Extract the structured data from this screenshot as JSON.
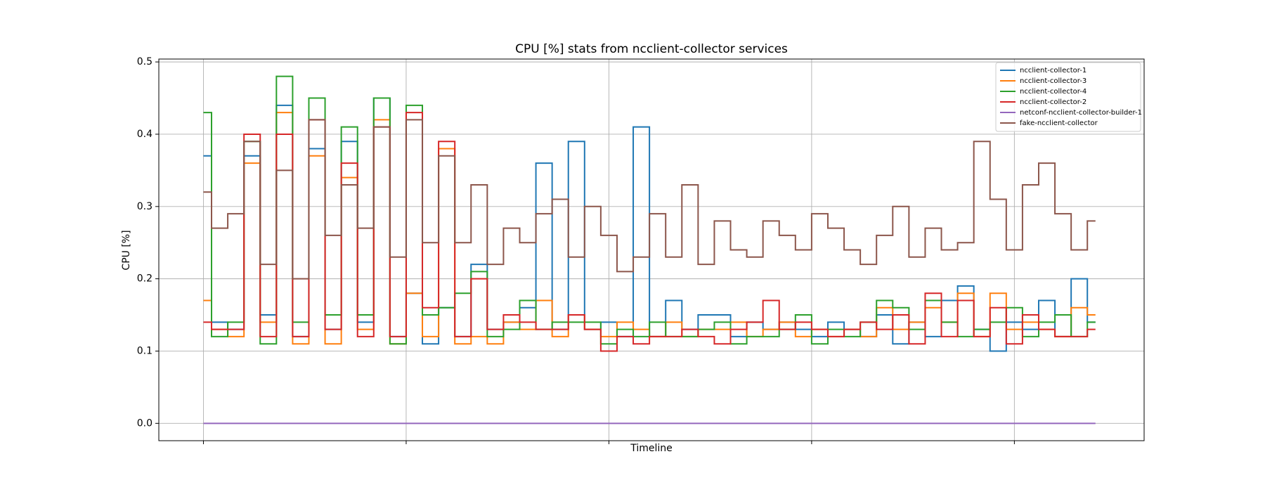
{
  "chart_data": {
    "type": "step",
    "title": "CPU [%] stats from ncclient-collector services",
    "x_label": "Timeline",
    "y_label": "CPU [%]",
    "x": [
      0,
      4,
      8,
      12,
      16,
      20,
      24,
      28,
      32,
      36,
      40,
      44,
      48,
      52,
      56,
      60,
      64,
      68,
      72,
      76,
      80,
      84,
      88,
      92,
      96,
      100,
      104,
      108,
      112,
      116,
      120,
      124,
      128,
      132,
      136,
      140,
      144,
      148,
      152,
      156,
      160,
      164,
      168,
      172,
      176,
      180,
      184,
      188,
      192,
      196,
      200,
      204,
      208,
      212,
      216,
      220
    ],
    "xlim": [
      -11,
      232
    ],
    "xticks": [
      0,
      50,
      100,
      150,
      200
    ],
    "ylim": [
      -0.024,
      0.504
    ],
    "yticks": [
      {
        "value": 0,
        "label": "0.0"
      },
      {
        "value": 0.1,
        "label": "0.1"
      },
      {
        "value": 0.2,
        "label": "0.2"
      },
      {
        "value": 0.3,
        "label": "0.3"
      },
      {
        "value": 0.4,
        "label": "0.4"
      },
      {
        "value": 0.5,
        "label": "0.5"
      }
    ],
    "grid": true,
    "legend": "upper right",
    "series": [
      {
        "name": "ncclient-collector-1",
        "color": "#1f77b4",
        "values": [
          0.37,
          0.14,
          0.13,
          0.37,
          0.15,
          0.44,
          0.12,
          0.38,
          0.13,
          0.39,
          0.14,
          0.45,
          0.12,
          0.18,
          0.11,
          0.16,
          0.12,
          0.22,
          0.13,
          0.14,
          0.16,
          0.36,
          0.13,
          0.39,
          0.13,
          0.14,
          0.12,
          0.41,
          0.12,
          0.17,
          0.13,
          0.15,
          0.15,
          0.12,
          0.14,
          0.13,
          0.14,
          0.13,
          0.12,
          0.14,
          0.13,
          0.12,
          0.15,
          0.11,
          0.14,
          0.12,
          0.17,
          0.19,
          0.13,
          0.1,
          0.14,
          0.13,
          0.17,
          0.12,
          0.2,
          0.14
        ]
      },
      {
        "name": "ncclient-collector-3",
        "color": "#ff7f0e",
        "values": [
          0.17,
          0.13,
          0.12,
          0.36,
          0.14,
          0.43,
          0.11,
          0.37,
          0.11,
          0.34,
          0.13,
          0.42,
          0.11,
          0.18,
          0.12,
          0.38,
          0.11,
          0.12,
          0.11,
          0.14,
          0.13,
          0.17,
          0.12,
          0.15,
          0.13,
          0.12,
          0.14,
          0.13,
          0.12,
          0.14,
          0.12,
          0.13,
          0.13,
          0.14,
          0.12,
          0.13,
          0.14,
          0.12,
          0.13,
          0.12,
          0.13,
          0.12,
          0.16,
          0.13,
          0.14,
          0.16,
          0.14,
          0.18,
          0.12,
          0.18,
          0.13,
          0.14,
          0.13,
          0.12,
          0.16,
          0.15
        ]
      },
      {
        "name": "ncclient-collector-4",
        "color": "#2ca02c",
        "values": [
          0.43,
          0.12,
          0.14,
          0.39,
          0.11,
          0.48,
          0.14,
          0.45,
          0.15,
          0.41,
          0.15,
          0.45,
          0.11,
          0.44,
          0.15,
          0.16,
          0.18,
          0.21,
          0.12,
          0.13,
          0.17,
          0.13,
          0.14,
          0.14,
          0.14,
          0.11,
          0.13,
          0.12,
          0.14,
          0.12,
          0.12,
          0.13,
          0.14,
          0.11,
          0.12,
          0.12,
          0.13,
          0.15,
          0.11,
          0.13,
          0.12,
          0.14,
          0.17,
          0.16,
          0.13,
          0.17,
          0.14,
          0.12,
          0.13,
          0.14,
          0.16,
          0.12,
          0.14,
          0.15,
          0.12,
          0.14
        ]
      },
      {
        "name": "ncclient-collector-2",
        "color": "#d62728",
        "values": [
          0.14,
          0.13,
          0.13,
          0.4,
          0.12,
          0.4,
          0.12,
          0.42,
          0.13,
          0.36,
          0.12,
          0.41,
          0.12,
          0.43,
          0.16,
          0.39,
          0.12,
          0.2,
          0.13,
          0.15,
          0.14,
          0.13,
          0.13,
          0.15,
          0.13,
          0.1,
          0.12,
          0.11,
          0.12,
          0.12,
          0.13,
          0.12,
          0.11,
          0.13,
          0.14,
          0.17,
          0.13,
          0.14,
          0.13,
          0.12,
          0.13,
          0.14,
          0.13,
          0.15,
          0.11,
          0.18,
          0.12,
          0.17,
          0.12,
          0.16,
          0.11,
          0.15,
          0.13,
          0.12,
          0.12,
          0.13
        ]
      },
      {
        "name": "netconf-ncclient-collector-builder-1",
        "color": "#9467bd",
        "values": [
          0,
          0,
          0,
          0,
          0,
          0,
          0,
          0,
          0,
          0,
          0,
          0,
          0,
          0,
          0,
          0,
          0,
          0,
          0,
          0,
          0,
          0,
          0,
          0,
          0,
          0,
          0,
          0,
          0,
          0,
          0,
          0,
          0,
          0,
          0,
          0,
          0,
          0,
          0,
          0,
          0,
          0,
          0,
          0,
          0,
          0,
          0,
          0,
          0,
          0,
          0,
          0,
          0,
          0,
          0,
          0
        ]
      },
      {
        "name": "fake-ncclient-collector",
        "color": "#8c564b",
        "values": [
          0.32,
          0.27,
          0.29,
          0.39,
          0.22,
          0.35,
          0.2,
          0.42,
          0.26,
          0.33,
          0.27,
          0.41,
          0.23,
          0.42,
          0.25,
          0.37,
          0.25,
          0.33,
          0.22,
          0.27,
          0.25,
          0.29,
          0.31,
          0.23,
          0.3,
          0.26,
          0.21,
          0.23,
          0.29,
          0.23,
          0.33,
          0.22,
          0.28,
          0.24,
          0.23,
          0.28,
          0.26,
          0.24,
          0.29,
          0.27,
          0.24,
          0.22,
          0.26,
          0.3,
          0.23,
          0.27,
          0.24,
          0.25,
          0.39,
          0.31,
          0.24,
          0.33,
          0.36,
          0.29,
          0.24,
          0.28
        ]
      }
    ]
  }
}
